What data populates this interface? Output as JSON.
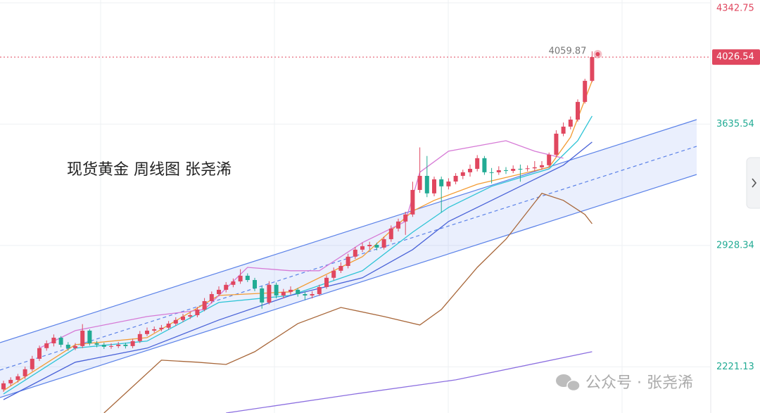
{
  "chart_data": {
    "type": "candlestick",
    "title": "现货黄金  周线图 张尧浠",
    "watermark": "公众号 · 张尧浠",
    "up_color": "#e0475f",
    "down_color": "#22ab94",
    "ylim": [
      1952,
      4359
    ],
    "yticks": [
      4342.75,
      3635.54,
      2928.34,
      2221.13
    ],
    "current_price": 4026.54,
    "high_label": 4059.87,
    "ohlc": [
      [
        2090,
        2140,
        2075,
        2125
      ],
      [
        2125,
        2160,
        2110,
        2145
      ],
      [
        2145,
        2180,
        2130,
        2166
      ],
      [
        2166,
        2222,
        2150,
        2207
      ],
      [
        2207,
        2285,
        2195,
        2268
      ],
      [
        2268,
        2345,
        2255,
        2330
      ],
      [
        2330,
        2375,
        2315,
        2358
      ],
      [
        2358,
        2410,
        2340,
        2391
      ],
      [
        2391,
        2400,
        2335,
        2350
      ],
      [
        2350,
        2365,
        2315,
        2330
      ],
      [
        2330,
        2360,
        2318,
        2342
      ],
      [
        2342,
        2470,
        2330,
        2432
      ],
      [
        2432,
        2440,
        2345,
        2358
      ],
      [
        2358,
        2372,
        2335,
        2350
      ],
      [
        2350,
        2362,
        2325,
        2338
      ],
      [
        2338,
        2358,
        2326,
        2342
      ],
      [
        2342,
        2366,
        2330,
        2350
      ],
      [
        2350,
        2362,
        2328,
        2342
      ],
      [
        2342,
        2385,
        2330,
        2371
      ],
      [
        2371,
        2430,
        2360,
        2412
      ],
      [
        2412,
        2450,
        2400,
        2432
      ],
      [
        2432,
        2456,
        2420,
        2440
      ],
      [
        2440,
        2465,
        2428,
        2449
      ],
      [
        2449,
        2488,
        2438,
        2473
      ],
      [
        2473,
        2510,
        2460,
        2494
      ],
      [
        2494,
        2530,
        2482,
        2514
      ],
      [
        2514,
        2540,
        2500,
        2522
      ],
      [
        2522,
        2570,
        2510,
        2555
      ],
      [
        2555,
        2622,
        2545,
        2604
      ],
      [
        2604,
        2660,
        2590,
        2645
      ],
      [
        2645,
        2690,
        2632,
        2670
      ],
      [
        2670,
        2715,
        2655,
        2699
      ],
      [
        2699,
        2736,
        2685,
        2719
      ],
      [
        2719,
        2790,
        2705,
        2752
      ],
      [
        2752,
        2766,
        2715,
        2727
      ],
      [
        2727,
        2740,
        2662,
        2678
      ],
      [
        2678,
        2690,
        2560,
        2596
      ],
      [
        2596,
        2720,
        2585,
        2699
      ],
      [
        2699,
        2712,
        2620,
        2637
      ],
      [
        2637,
        2675,
        2620,
        2658
      ],
      [
        2658,
        2690,
        2642,
        2670
      ],
      [
        2670,
        2680,
        2630,
        2645
      ],
      [
        2645,
        2660,
        2610,
        2637
      ],
      [
        2637,
        2662,
        2620,
        2645
      ],
      [
        2645,
        2700,
        2635,
        2686
      ],
      [
        2686,
        2755,
        2675,
        2740
      ],
      [
        2740,
        2800,
        2725,
        2781
      ],
      [
        2781,
        2830,
        2768,
        2809
      ],
      [
        2809,
        2880,
        2795,
        2863
      ],
      [
        2863,
        2920,
        2850,
        2904
      ],
      [
        2904,
        2945,
        2890,
        2924
      ],
      [
        2924,
        2950,
        2905,
        2932
      ],
      [
        2932,
        2945,
        2900,
        2916
      ],
      [
        2916,
        2980,
        2905,
        2965
      ],
      [
        2965,
        3045,
        2950,
        3027
      ],
      [
        3027,
        3085,
        3010,
        3068
      ],
      [
        3068,
        3125,
        2990,
        3109
      ],
      [
        3109,
        3300,
        3095,
        3252
      ],
      [
        3252,
        3500,
        3235,
        3334
      ],
      [
        3334,
        3450,
        3210,
        3232
      ],
      [
        3232,
        3330,
        3215,
        3314
      ],
      [
        3314,
        3330,
        3120,
        3273
      ],
      [
        3273,
        3320,
        3255,
        3301
      ],
      [
        3301,
        3350,
        3285,
        3334
      ],
      [
        3334,
        3370,
        3315,
        3355
      ],
      [
        3355,
        3400,
        3330,
        3375
      ],
      [
        3375,
        3455,
        3360,
        3437
      ],
      [
        3437,
        3450,
        3340,
        3355
      ],
      [
        3355,
        3380,
        3290,
        3355
      ],
      [
        3355,
        3390,
        3340,
        3367
      ],
      [
        3367,
        3385,
        3345,
        3363
      ],
      [
        3363,
        3395,
        3350,
        3375
      ],
      [
        3375,
        3400,
        3300,
        3375
      ],
      [
        3375,
        3395,
        3360,
        3378
      ],
      [
        3378,
        3420,
        3360,
        3384
      ],
      [
        3384,
        3420,
        3370,
        3396
      ],
      [
        3396,
        3470,
        3385,
        3457
      ],
      [
        3457,
        3600,
        3445,
        3580
      ],
      [
        3580,
        3645,
        3565,
        3621
      ],
      [
        3621,
        3680,
        3605,
        3662
      ],
      [
        3662,
        3780,
        3650,
        3765
      ],
      [
        3765,
        3900,
        3755,
        3888
      ],
      [
        3888,
        4059.87,
        3880,
        4026.54
      ]
    ],
    "series": [
      {
        "color": "#f39c34",
        "x": [
          0,
          10,
          20,
          30,
          40,
          50,
          57,
          60,
          66,
          76,
          79,
          82
        ],
        "values": [
          2083,
          2350,
          2391,
          2637,
          2658,
          2863,
          3129,
          3191,
          3285,
          3384,
          3560,
          3888
        ]
      },
      {
        "color": "#2ec4d6",
        "x": [
          0,
          10,
          20,
          30,
          40,
          50,
          57,
          62,
          68,
          76,
          80,
          82
        ],
        "values": [
          2063,
          2330,
          2371,
          2596,
          2637,
          2781,
          3006,
          3150,
          3273,
          3375,
          3539,
          3683
        ]
      },
      {
        "color": "#4a63d8",
        "x": [
          0,
          10,
          20,
          30,
          40,
          50,
          57,
          62,
          68,
          74,
          78,
          82
        ],
        "values": [
          2030,
          2248,
          2330,
          2494,
          2637,
          2740,
          2904,
          3068,
          3191,
          3314,
          3396,
          3531
        ]
      },
      {
        "color": "#d67ad6",
        "x": [
          5,
          10,
          20,
          28,
          34,
          40,
          44,
          50,
          56,
          58,
          62,
          70,
          74,
          78
        ],
        "values": [
          2330,
          2432,
          2514,
          2555,
          2801,
          2781,
          2781,
          2945,
          3068,
          3355,
          3478,
          3539,
          3478,
          3437
        ]
      },
      {
        "color": "#a8673a",
        "x": [
          14,
          22,
          27,
          31,
          35,
          41,
          47,
          53,
          58,
          61,
          66,
          70,
          75,
          78,
          81,
          82
        ],
        "values": [
          1952,
          2260,
          2248,
          2235,
          2309,
          2473,
          2567,
          2514,
          2465,
          2555,
          2801,
          2965,
          3232,
          3191,
          3109,
          3055
        ]
      },
      {
        "color": "#8c6fe0",
        "x": [
          31,
          49,
          63,
          82
        ],
        "values": [
          1952,
          2063,
          2145,
          2309
        ]
      }
    ]
  }
}
